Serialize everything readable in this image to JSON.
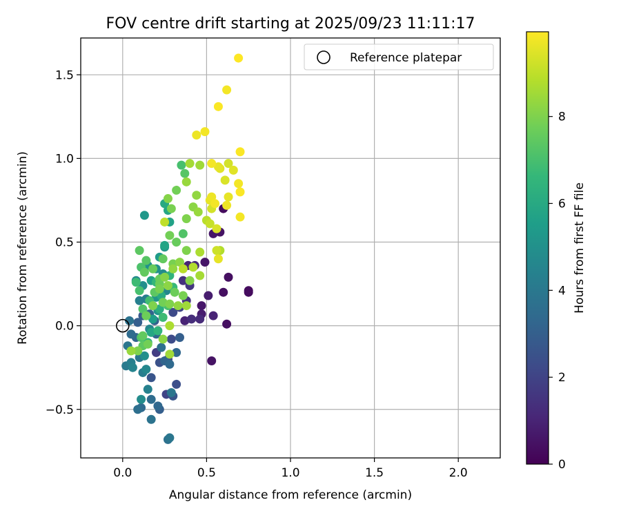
{
  "chart_data": {
    "type": "scatter",
    "title": "FOV centre drift starting at 2025/09/23 11:11:17",
    "xlabel": "Angular distance from reference (arcmin)",
    "ylabel": "Rotation from reference (arcmin)",
    "xlim": [
      -0.25,
      2.25
    ],
    "ylim": [
      -0.79,
      1.72
    ],
    "grid": true,
    "xticks": [
      0.0,
      0.5,
      1.0,
      1.5,
      2.0
    ],
    "xtick_labels": [
      "0.0",
      "0.5",
      "1.0",
      "1.5",
      "2.0"
    ],
    "yticks": [
      -0.5,
      0.0,
      0.5,
      1.0,
      1.5
    ],
    "ytick_labels": [
      "−0.5",
      "0.0",
      "0.5",
      "1.0",
      "1.5"
    ],
    "legend": {
      "placement": "top-right",
      "entries": [
        "Reference platepar"
      ]
    },
    "reference_point": {
      "x": 0.0,
      "y": 0.0,
      "label": "Reference platepar"
    },
    "colorbar": {
      "label": "Hours from first FF file",
      "min": 0,
      "max": 9.95,
      "ticks": [
        0,
        2,
        4,
        6,
        8
      ],
      "tick_labels": [
        "0",
        "2",
        "4",
        "6",
        "8"
      ],
      "colormap": "viridis",
      "colors": [
        "#440154",
        "#482878",
        "#3e4a89",
        "#31688e",
        "#26828e",
        "#1f9e89",
        "#35b779",
        "#6ece58",
        "#b5de2b",
        "#fde725"
      ]
    },
    "series": [
      {
        "name": "FOV centre samples",
        "points": [
          [
            0.75,
            0.21,
            0.3
          ],
          [
            0.75,
            0.2,
            0.3
          ],
          [
            0.63,
            0.29,
            0.4
          ],
          [
            0.6,
            0.7,
            0.3
          ],
          [
            0.6,
            0.2,
            0.4
          ],
          [
            0.62,
            0.01,
            0.4
          ],
          [
            0.53,
            -0.21,
            0.5
          ],
          [
            0.58,
            0.56,
            0.5
          ],
          [
            0.54,
            0.55,
            0.6
          ],
          [
            0.49,
            0.38,
            0.6
          ],
          [
            0.51,
            0.18,
            0.8
          ],
          [
            0.54,
            0.06,
            1.0
          ],
          [
            0.47,
            0.12,
            0.6
          ],
          [
            0.47,
            0.07,
            0.8
          ],
          [
            0.46,
            0.04,
            1.2
          ],
          [
            0.43,
            0.36,
            1.2
          ],
          [
            0.39,
            0.36,
            1.0
          ],
          [
            0.36,
            0.27,
            1.4
          ],
          [
            0.4,
            0.24,
            1.6
          ],
          [
            0.37,
            0.03,
            1.0
          ],
          [
            0.41,
            0.04,
            1.3
          ],
          [
            0.38,
            0.15,
            1.5
          ],
          [
            0.34,
            0.11,
            2.0
          ],
          [
            0.3,
            0.08,
            2.2
          ],
          [
            0.29,
            -0.08,
            2.3
          ],
          [
            0.32,
            -0.35,
            2.4
          ],
          [
            0.3,
            -0.42,
            2.6
          ],
          [
            0.26,
            -0.41,
            2.0
          ],
          [
            0.27,
            -0.2,
            2.2
          ],
          [
            0.22,
            -0.22,
            2.5
          ],
          [
            0.2,
            -0.16,
            1.8
          ],
          [
            0.17,
            -0.31,
            2.6
          ],
          [
            0.22,
            -0.5,
            3.0
          ],
          [
            0.21,
            -0.48,
            3.3
          ],
          [
            0.17,
            -0.56,
            3.8
          ],
          [
            0.17,
            -0.44,
            3.5
          ],
          [
            0.11,
            -0.49,
            3.4
          ],
          [
            0.09,
            -0.5,
            3.6
          ],
          [
            0.28,
            -0.67,
            3.9
          ],
          [
            0.27,
            -0.68,
            3.7
          ],
          [
            0.29,
            -0.4,
            3.9
          ],
          [
            0.28,
            -0.23,
            3.4
          ],
          [
            0.34,
            -0.07,
            3.0
          ],
          [
            0.32,
            -0.16,
            3.3
          ],
          [
            0.25,
            -0.21,
            3.2
          ],
          [
            0.23,
            -0.13,
            3.6
          ],
          [
            0.2,
            -0.05,
            3.2
          ],
          [
            0.19,
            0.03,
            3.0
          ],
          [
            0.16,
            0.07,
            3.1
          ],
          [
            0.12,
            0.06,
            2.8
          ],
          [
            0.09,
            0.02,
            3.0
          ],
          [
            0.08,
            -0.07,
            3.2
          ],
          [
            0.05,
            -0.05,
            3.5
          ],
          [
            0.04,
            0.03,
            3.8
          ],
          [
            0.03,
            -0.12,
            3.9
          ],
          [
            0.02,
            -0.24,
            4.1
          ],
          [
            0.05,
            -0.22,
            4.3
          ],
          [
            0.06,
            -0.25,
            4.5
          ],
          [
            0.1,
            -0.19,
            4.0
          ],
          [
            0.12,
            -0.28,
            4.2
          ],
          [
            0.14,
            -0.26,
            4.6
          ],
          [
            0.15,
            -0.38,
            4.4
          ],
          [
            0.11,
            -0.44,
            4.8
          ],
          [
            0.13,
            -0.18,
            4.9
          ],
          [
            0.16,
            -0.02,
            4.6
          ],
          [
            0.18,
            0.12,
            4.5
          ],
          [
            0.14,
            0.16,
            4.2
          ],
          [
            0.1,
            0.15,
            4.3
          ],
          [
            0.08,
            0.27,
            4.7
          ],
          [
            0.12,
            0.24,
            4.9
          ],
          [
            0.15,
            0.36,
            5.0
          ],
          [
            0.13,
            0.66,
            5.3
          ],
          [
            0.25,
            0.47,
            5.2
          ],
          [
            0.22,
            0.41,
            5.4
          ],
          [
            0.2,
            0.34,
            5.0
          ],
          [
            0.24,
            0.31,
            4.8
          ],
          [
            0.26,
            0.21,
            4.6
          ],
          [
            0.21,
            0.09,
            5.1
          ],
          [
            0.18,
            0.04,
            5.5
          ],
          [
            0.2,
            0.17,
            5.2
          ],
          [
            0.17,
            0.27,
            5.6
          ],
          [
            0.25,
            0.48,
            5.8
          ],
          [
            0.28,
            0.62,
            5.7
          ],
          [
            0.27,
            0.69,
            5.9
          ],
          [
            0.25,
            0.73,
            6.0
          ],
          [
            0.23,
            0.18,
            6.1
          ],
          [
            0.22,
            0.1,
            6.2
          ],
          [
            0.17,
            -0.04,
            5.9
          ],
          [
            0.15,
            -0.1,
            6.3
          ],
          [
            0.21,
            -0.03,
            6.5
          ],
          [
            0.24,
            0.05,
            6.8
          ],
          [
            0.27,
            0.12,
            7.0
          ],
          [
            0.3,
            0.23,
            6.7
          ],
          [
            0.28,
            0.3,
            6.4
          ],
          [
            0.2,
            0.26,
            6.6
          ],
          [
            0.16,
            0.15,
            6.9
          ],
          [
            0.12,
            0.1,
            7.2
          ],
          [
            0.1,
            0.21,
            7.0
          ],
          [
            0.08,
            0.26,
            6.8
          ],
          [
            0.11,
            0.35,
            7.1
          ],
          [
            0.14,
            0.39,
            7.3
          ],
          [
            0.1,
            0.45,
            7.4
          ],
          [
            0.13,
            0.32,
            7.5
          ],
          [
            0.18,
            0.34,
            7.6
          ],
          [
            0.22,
            0.25,
            7.7
          ],
          [
            0.24,
            0.4,
            7.5
          ],
          [
            0.28,
            0.54,
            7.8
          ],
          [
            0.32,
            0.5,
            7.6
          ],
          [
            0.36,
            0.55,
            7.2
          ],
          [
            0.35,
            0.96,
            7.0
          ],
          [
            0.37,
            0.91,
            7.3
          ],
          [
            0.32,
            0.81,
            7.8
          ],
          [
            0.29,
            0.7,
            7.9
          ],
          [
            0.27,
            0.76,
            8.1
          ],
          [
            0.38,
            0.64,
            8.0
          ],
          [
            0.42,
            0.71,
            8.2
          ],
          [
            0.44,
            0.78,
            8.3
          ],
          [
            0.38,
            0.86,
            8.4
          ],
          [
            0.4,
            0.97,
            8.6
          ],
          [
            0.46,
            0.96,
            8.5
          ],
          [
            0.45,
            0.68,
            8.4
          ],
          [
            0.38,
            0.45,
            8.0
          ],
          [
            0.34,
            0.38,
            8.2
          ],
          [
            0.3,
            0.37,
            7.9
          ],
          [
            0.25,
            0.29,
            8.1
          ],
          [
            0.22,
            0.28,
            7.6
          ],
          [
            0.19,
            0.2,
            7.4
          ],
          [
            0.24,
            0.14,
            7.8
          ],
          [
            0.28,
            0.13,
            8.0
          ],
          [
            0.33,
            0.12,
            8.3
          ],
          [
            0.38,
            0.12,
            8.5
          ],
          [
            0.31,
            0.2,
            7.7
          ],
          [
            0.36,
            0.18,
            7.9
          ],
          [
            0.4,
            0.27,
            8.1
          ],
          [
            0.46,
            0.3,
            8.6
          ],
          [
            0.46,
            0.44,
            8.7
          ],
          [
            0.42,
            0.35,
            8.8
          ],
          [
            0.36,
            0.34,
            8.9
          ],
          [
            0.3,
            0.34,
            8.3
          ],
          [
            0.27,
            0.24,
            8.2
          ],
          [
            0.22,
            0.22,
            7.9
          ],
          [
            0.18,
            0.12,
            8.0
          ],
          [
            0.14,
            0.06,
            7.7
          ],
          [
            0.12,
            -0.06,
            7.5
          ],
          [
            0.11,
            -0.07,
            7.2
          ],
          [
            0.15,
            -0.11,
            7.8
          ],
          [
            0.12,
            -0.12,
            7.4
          ],
          [
            0.09,
            -0.15,
            8.0
          ],
          [
            0.05,
            -0.15,
            8.4
          ],
          [
            0.24,
            -0.08,
            8.2
          ],
          [
            0.28,
            -0.17,
            8.5
          ],
          [
            0.28,
            0.0,
            8.7
          ],
          [
            0.25,
            0.62,
            9.0
          ],
          [
            0.5,
            0.63,
            8.9
          ],
          [
            0.53,
            0.7,
            9.3
          ],
          [
            0.52,
            0.61,
            9.1
          ],
          [
            0.56,
            0.58,
            9.4
          ],
          [
            0.58,
            0.45,
            8.8
          ],
          [
            0.56,
            0.45,
            9.2
          ],
          [
            0.57,
            0.4,
            9.6
          ],
          [
            0.52,
            0.75,
            9.6
          ],
          [
            0.53,
            0.77,
            9.7
          ],
          [
            0.55,
            0.73,
            9.8
          ],
          [
            0.57,
            0.95,
            9.6
          ],
          [
            0.53,
            0.97,
            9.8
          ],
          [
            0.58,
            0.94,
            9.5
          ],
          [
            0.61,
            0.87,
            9.4
          ],
          [
            0.63,
            0.97,
            9.3
          ],
          [
            0.66,
            0.93,
            9.5
          ],
          [
            0.63,
            0.77,
            9.6
          ],
          [
            0.62,
            0.72,
            9.7
          ],
          [
            0.69,
            0.85,
            9.8
          ],
          [
            0.7,
            0.8,
            9.9
          ],
          [
            0.7,
            0.65,
            9.8
          ],
          [
            0.7,
            1.04,
            9.9
          ],
          [
            0.44,
            1.14,
            9.7
          ],
          [
            0.49,
            1.16,
            9.8
          ],
          [
            0.57,
            1.31,
            9.9
          ],
          [
            0.62,
            1.41,
            9.8
          ],
          [
            0.69,
            1.6,
            9.95
          ]
        ]
      }
    ]
  }
}
